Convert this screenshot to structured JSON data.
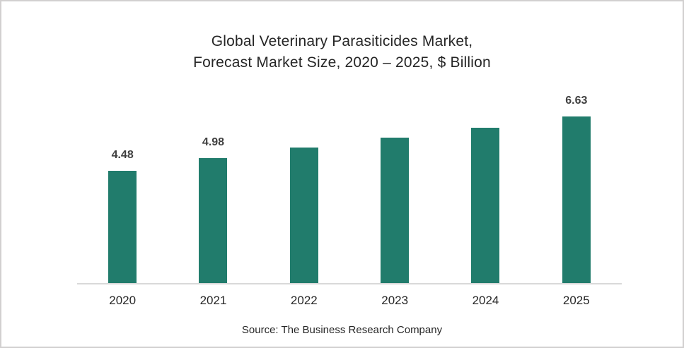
{
  "frame": {
    "background_color": "#FFFFFF",
    "border_color": "#D2D0D0"
  },
  "title": {
    "line1": "Global Veterinary Parasiticides Market,",
    "line2": "Forecast Market Size, 2020 – 2025, $ Billion"
  },
  "source": "Source: The Business Research Company",
  "chart_data": {
    "type": "bar",
    "title": "Global Veterinary Parasiticides Market, Forecast Market Size, 2020 – 2025, $ Billion",
    "categories": [
      "2020",
      "2021",
      "2022",
      "2023",
      "2024",
      "2025"
    ],
    "values": [
      4.48,
      4.98,
      5.4,
      5.8,
      6.2,
      6.63
    ],
    "data_labels": [
      "4.48",
      "4.98",
      null,
      null,
      null,
      "6.63"
    ],
    "unit": "$ Billion",
    "xlabel": "",
    "ylabel": "",
    "value_axis_visible": false,
    "grid": false,
    "legend": false,
    "bar_color": "#217C6C",
    "data_label_color": "#404040",
    "category_label_color": "#262626",
    "axis_line_color": "#D9D9D9"
  }
}
